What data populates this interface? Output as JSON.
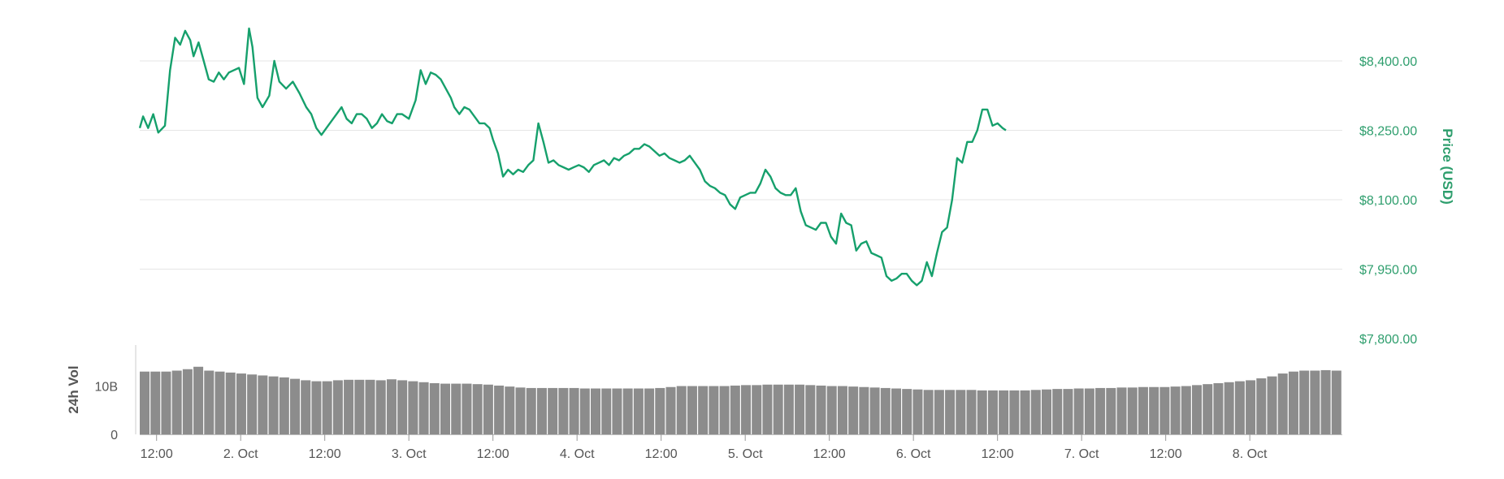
{
  "chart_data": {
    "type": "line",
    "price_axis": {
      "label": "Price (USD)",
      "ticks": [
        "$8,400.00",
        "$8,250.00",
        "$8,100.00",
        "$7,950.00",
        "$7,800.00"
      ],
      "tick_values": [
        8400,
        8250,
        8100,
        7950,
        7800
      ],
      "ylim": [
        7800,
        8400
      ]
    },
    "volume_axis": {
      "label": "24h Vol",
      "ticks": [
        "10B",
        "0"
      ],
      "tick_values": [
        10,
        0
      ]
    },
    "x_axis": {
      "ticks": [
        "12:00",
        "2. Oct",
        "12:00",
        "3. Oct",
        "12:00",
        "4. Oct",
        "12:00",
        "5. Oct",
        "12:00",
        "6. Oct",
        "12:00",
        "7. Oct",
        "12:00",
        "8. Oct"
      ],
      "tick_values": [
        0.5,
        1,
        1.5,
        2,
        2.5,
        3,
        3.5,
        4,
        4.5,
        5,
        5.5,
        6,
        6.5,
        7
      ],
      "range": [
        0.4,
        7.55
      ]
    },
    "grid": true,
    "colors": {
      "price_line": "#16a06c",
      "volume_bar": "#8c8c8c",
      "grid": "#e6e6e6",
      "price_text": "#2e9e6d"
    },
    "series": [
      {
        "points": [
          [
            0.4,
            8255
          ],
          [
            0.42,
            8280
          ],
          [
            0.45,
            8255
          ],
          [
            0.48,
            8285
          ],
          [
            0.51,
            8245
          ],
          [
            0.55,
            8260
          ],
          [
            0.58,
            8380
          ],
          [
            0.61,
            8450
          ],
          [
            0.64,
            8435
          ],
          [
            0.67,
            8465
          ],
          [
            0.7,
            8445
          ],
          [
            0.72,
            8410
          ],
          [
            0.75,
            8440
          ],
          [
            0.78,
            8400
          ],
          [
            0.81,
            8360
          ],
          [
            0.84,
            8355
          ],
          [
            0.87,
            8375
          ],
          [
            0.9,
            8360
          ],
          [
            0.93,
            8375
          ],
          [
            0.96,
            8380
          ],
          [
            0.99,
            8385
          ],
          [
            1.02,
            8350
          ],
          [
            1.05,
            8470
          ],
          [
            1.07,
            8430
          ],
          [
            1.1,
            8320
          ],
          [
            1.13,
            8300
          ],
          [
            1.17,
            8325
          ],
          [
            1.2,
            8400
          ],
          [
            1.23,
            8355
          ],
          [
            1.27,
            8340
          ],
          [
            1.31,
            8355
          ],
          [
            1.35,
            8330
          ],
          [
            1.39,
            8300
          ],
          [
            1.42,
            8285
          ],
          [
            1.45,
            8255
          ],
          [
            1.48,
            8240
          ],
          [
            1.52,
            8260
          ],
          [
            1.56,
            8280
          ],
          [
            1.6,
            8300
          ],
          [
            1.63,
            8275
          ],
          [
            1.66,
            8265
          ],
          [
            1.69,
            8285
          ],
          [
            1.72,
            8285
          ],
          [
            1.75,
            8275
          ],
          [
            1.78,
            8255
          ],
          [
            1.81,
            8265
          ],
          [
            1.84,
            8285
          ],
          [
            1.87,
            8270
          ],
          [
            1.9,
            8265
          ],
          [
            1.93,
            8285
          ],
          [
            1.96,
            8285
          ],
          [
            2.0,
            8275
          ],
          [
            2.04,
            8315
          ],
          [
            2.07,
            8380
          ],
          [
            2.1,
            8350
          ],
          [
            2.13,
            8375
          ],
          [
            2.16,
            8370
          ],
          [
            2.19,
            8360
          ],
          [
            2.22,
            8340
          ],
          [
            2.25,
            8320
          ],
          [
            2.27,
            8300
          ],
          [
            2.3,
            8285
          ],
          [
            2.33,
            8300
          ],
          [
            2.36,
            8295
          ],
          [
            2.39,
            8280
          ],
          [
            2.42,
            8265
          ],
          [
            2.45,
            8265
          ],
          [
            2.48,
            8255
          ],
          [
            2.5,
            8230
          ],
          [
            2.53,
            8200
          ],
          [
            2.56,
            8150
          ],
          [
            2.59,
            8165
          ],
          [
            2.62,
            8155
          ],
          [
            2.65,
            8165
          ],
          [
            2.68,
            8160
          ],
          [
            2.71,
            8175
          ],
          [
            2.74,
            8185
          ],
          [
            2.77,
            8265
          ],
          [
            2.8,
            8225
          ],
          [
            2.83,
            8180
          ],
          [
            2.86,
            8185
          ],
          [
            2.89,
            8175
          ],
          [
            2.92,
            8170
          ],
          [
            2.95,
            8165
          ],
          [
            2.98,
            8170
          ],
          [
            3.01,
            8175
          ],
          [
            3.04,
            8170
          ],
          [
            3.07,
            8160
          ],
          [
            3.1,
            8175
          ],
          [
            3.13,
            8180
          ],
          [
            3.16,
            8185
          ],
          [
            3.19,
            8175
          ],
          [
            3.22,
            8190
          ],
          [
            3.25,
            8185
          ],
          [
            3.28,
            8195
          ],
          [
            3.31,
            8200
          ],
          [
            3.34,
            8210
          ],
          [
            3.37,
            8210
          ],
          [
            3.4,
            8220
          ],
          [
            3.43,
            8215
          ],
          [
            3.46,
            8205
          ],
          [
            3.49,
            8195
          ],
          [
            3.52,
            8200
          ],
          [
            3.55,
            8190
          ],
          [
            3.58,
            8185
          ],
          [
            3.61,
            8180
          ],
          [
            3.64,
            8185
          ],
          [
            3.67,
            8195
          ],
          [
            3.7,
            8180
          ],
          [
            3.73,
            8165
          ],
          [
            3.76,
            8140
          ],
          [
            3.79,
            8130
          ],
          [
            3.82,
            8125
          ],
          [
            3.85,
            8115
          ],
          [
            3.88,
            8110
          ],
          [
            3.91,
            8090
          ],
          [
            3.94,
            8080
          ],
          [
            3.97,
            8105
          ],
          [
            4.0,
            8110
          ],
          [
            4.03,
            8115
          ],
          [
            4.06,
            8115
          ],
          [
            4.09,
            8135
          ],
          [
            4.12,
            8165
          ],
          [
            4.15,
            8150
          ],
          [
            4.18,
            8125
          ],
          [
            4.21,
            8115
          ],
          [
            4.24,
            8110
          ],
          [
            4.27,
            8110
          ],
          [
            4.3,
            8125
          ],
          [
            4.33,
            8075
          ],
          [
            4.36,
            8045
          ],
          [
            4.39,
            8040
          ],
          [
            4.42,
            8035
          ],
          [
            4.45,
            8050
          ],
          [
            4.48,
            8050
          ],
          [
            4.51,
            8020
          ],
          [
            4.54,
            8005
          ],
          [
            4.57,
            8070
          ],
          [
            4.6,
            8050
          ],
          [
            4.63,
            8045
          ],
          [
            4.66,
            7990
          ],
          [
            4.69,
            8005
          ],
          [
            4.72,
            8010
          ],
          [
            4.75,
            7985
          ],
          [
            4.78,
            7980
          ],
          [
            4.81,
            7975
          ],
          [
            4.84,
            7935
          ],
          [
            4.87,
            7925
          ],
          [
            4.9,
            7930
          ],
          [
            4.93,
            7940
          ],
          [
            4.96,
            7940
          ],
          [
            4.99,
            7925
          ],
          [
            5.02,
            7915
          ],
          [
            5.05,
            7925
          ],
          [
            5.08,
            7965
          ],
          [
            5.11,
            7935
          ],
          [
            5.14,
            7985
          ],
          [
            5.17,
            8030
          ],
          [
            5.2,
            8040
          ],
          [
            5.23,
            8100
          ],
          [
            5.26,
            8190
          ],
          [
            5.29,
            8180
          ],
          [
            5.32,
            8225
          ],
          [
            5.35,
            8225
          ],
          [
            5.38,
            8250
          ],
          [
            5.41,
            8295
          ],
          [
            5.44,
            8295
          ],
          [
            5.47,
            8260
          ],
          [
            5.5,
            8265
          ],
          [
            5.53,
            8255
          ],
          [
            5.55,
            8250
          ]
        ]
      }
    ],
    "volume": {
      "values": [
        13,
        13,
        13,
        13.2,
        13.5,
        14,
        13.2,
        13,
        12.8,
        12.6,
        12.4,
        12.2,
        12,
        11.8,
        11.5,
        11.2,
        11,
        11,
        11.2,
        11.3,
        11.3,
        11.3,
        11.2,
        11.4,
        11.2,
        11.0,
        10.8,
        10.6,
        10.5,
        10.5,
        10.5,
        10.4,
        10.3,
        10.1,
        9.9,
        9.7,
        9.6,
        9.6,
        9.6,
        9.6,
        9.6,
        9.5,
        9.5,
        9.5,
        9.5,
        9.5,
        9.5,
        9.5,
        9.6,
        9.8,
        10,
        10,
        10,
        10,
        10,
        10.1,
        10.2,
        10.2,
        10.3,
        10.3,
        10.3,
        10.3,
        10.2,
        10.1,
        10,
        10,
        9.9,
        9.8,
        9.7,
        9.6,
        9.5,
        9.4,
        9.3,
        9.2,
        9.2,
        9.2,
        9.2,
        9.2,
        9.1,
        9.1,
        9.1,
        9.1,
        9.1,
        9.2,
        9.3,
        9.4,
        9.4,
        9.5,
        9.5,
        9.6,
        9.6,
        9.7,
        9.7,
        9.8,
        9.8,
        9.8,
        9.9,
        10,
        10.2,
        10.4,
        10.6,
        10.8,
        11,
        11.2,
        11.6,
        12,
        12.6,
        13,
        13.2,
        13.2,
        13.3,
        13.2
      ]
    }
  }
}
